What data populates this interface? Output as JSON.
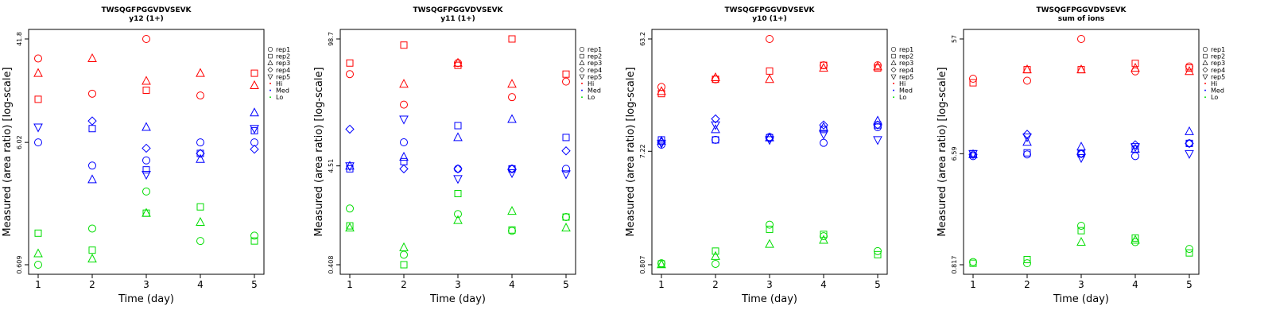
{
  "chart_data": [
    {
      "type": "scatter",
      "title": "TWSQGFPGGVDVSEVK",
      "subtitle": "y12 (1+)",
      "xlabel": "Time (day)",
      "ylabel": "Measured (area ratio) [log-scale]",
      "y_scale": "log",
      "ylim": [
        0.609,
        41.8
      ],
      "yticks": [
        "0.609",
        "6.02",
        "41.8"
      ],
      "categories": [
        1,
        2,
        3,
        4,
        5
      ],
      "legend_position": "right",
      "legend": [
        "rep1",
        "rep2",
        "rep3",
        "rep4",
        "rep5",
        "Hi",
        "Med",
        "Lo"
      ],
      "series": [
        {
          "name": "Hi",
          "color": "#ff0000",
          "reps": {
            "rep1": [
              29,
              15,
              41.8,
              14.5,
              null
            ],
            "rep2": [
              13.5,
              null,
              16,
              null,
              22
            ],
            "rep3": [
              22,
              29,
              19,
              22,
              17.5
            ]
          }
        },
        {
          "name": "Med",
          "color": "#0000ff",
          "reps": {
            "rep1": [
              6.02,
              3.9,
              4.3,
              6.02,
              6.02
            ],
            "rep2": [
              null,
              7.8,
              3.6,
              4.9,
              7.5
            ],
            "rep3": [
              null,
              3.0,
              8.0,
              4.4,
              10.5
            ],
            "rep4": [
              null,
              9.0,
              5.4,
              4.9,
              5.3
            ],
            "rep5": [
              8.0,
              null,
              3.3,
              null,
              7.8
            ]
          }
        },
        {
          "name": "Lo",
          "color": "#00dd00",
          "reps": {
            "rep1": [
              0.609,
              1.2,
              2.4,
              0.95,
              1.05
            ],
            "rep2": [
              1.1,
              0.8,
              1.6,
              1.8,
              0.95
            ],
            "rep3": [
              0.75,
              0.68,
              1.6,
              1.35,
              null
            ]
          }
        }
      ]
    },
    {
      "type": "scatter",
      "title": "TWSQGFPGGVDVSEVK",
      "subtitle": "y11 (1+)",
      "xlabel": "Time (day)",
      "ylabel": "Measured (area ratio) [log-scale]",
      "y_scale": "log",
      "ylim": [
        0.408,
        98.7
      ],
      "yticks": [
        "0.408",
        "4.51",
        "98.7"
      ],
      "categories": [
        1,
        2,
        3,
        4,
        5
      ],
      "legend_position": "right",
      "legend": [
        "rep1",
        "rep2",
        "rep3",
        "rep4",
        "rep5",
        "Hi",
        "Med",
        "Lo"
      ],
      "series": [
        {
          "name": "Hi",
          "color": "#ff0000",
          "reps": {
            "rep1": [
              42,
              20,
              55,
              24,
              35
            ],
            "rep2": [
              55,
              85,
              52,
              98.7,
              42
            ],
            "rep3": [
              null,
              33,
              55,
              33,
              null
            ]
          }
        },
        {
          "name": "Med",
          "color": "#0000ff",
          "reps": {
            "rep1": [
              null,
              8.0,
              4.2,
              4.2,
              4.2
            ],
            "rep2": [
              4.2,
              5.0,
              12,
              4.2,
              9.0
            ],
            "rep3": [
              4.5,
              5.6,
              9.0,
              14,
              null
            ],
            "rep4": [
              11,
              4.2,
              4.2,
              4.2,
              6.5
            ],
            "rep5": [
              4.5,
              14,
              3.3,
              3.8,
              3.7
            ]
          }
        },
        {
          "name": "Lo",
          "color": "#00dd00",
          "reps": {
            "rep1": [
              1.6,
              0.52,
              1.4,
              0.93,
              1.3
            ],
            "rep2": [
              1.05,
              0.408,
              2.3,
              0.95,
              1.3
            ],
            "rep3": [
              1.0,
              0.62,
              1.2,
              1.5,
              1.0
            ]
          }
        }
      ]
    },
    {
      "type": "scatter",
      "title": "TWSQGFPGGVDVSEVK",
      "subtitle": "y10 (1+)",
      "xlabel": "Time (day)",
      "ylabel": "Measured (area ratio) [log-scale]",
      "y_scale": "log",
      "ylim": [
        0.807,
        63.2
      ],
      "yticks": [
        "0.807",
        "7.22",
        "63.2"
      ],
      "categories": [
        1,
        2,
        3,
        4,
        5
      ],
      "legend_position": "right",
      "legend": [
        "rep1",
        "rep2",
        "rep3",
        "rep4",
        "rep5",
        "Hi",
        "Med",
        "Lo"
      ],
      "series": [
        {
          "name": "Hi",
          "color": "#ff0000",
          "reps": {
            "rep1": [
              25,
              29,
              63.2,
              38,
              38
            ],
            "rep2": [
              22,
              29,
              34,
              38,
              36
            ],
            "rep3": [
              23,
              30,
              29,
              36,
              37
            ]
          }
        },
        {
          "name": "Med",
          "color": "#0000ff",
          "reps": {
            "rep1": [
              8.2,
              9.0,
              9.5,
              8.5,
              11.5
            ],
            "rep2": [
              9.0,
              9.0,
              9.4,
              11,
              12
            ],
            "rep3": [
              8.8,
              11,
              9.4,
              11.5,
              13
            ],
            "rep4": [
              8.6,
              13.5,
              9.3,
              12,
              12
            ],
            "rep5": [
              8.4,
              12,
              9.0,
              10,
              9.0
            ]
          }
        },
        {
          "name": "Lo",
          "color": "#00dd00",
          "reps": {
            "rep1": [
              0.83,
              0.82,
              1.75,
              1.4,
              1.05
            ],
            "rep2": [
              0.82,
              1.05,
              1.6,
              1.45,
              0.98
            ],
            "rep3": [
              0.81,
              0.95,
              1.2,
              1.3,
              null
            ]
          }
        }
      ]
    },
    {
      "type": "scatter",
      "title": "TWSQGFPGGVDVSEVK",
      "subtitle": "sum of ions",
      "xlabel": "Time (day)",
      "ylabel": "Measured (area ratio) [log-scale]",
      "y_scale": "log",
      "ylim": [
        0.817,
        57
      ],
      "yticks": [
        "0.817",
        "6.59",
        "57"
      ],
      "categories": [
        1,
        2,
        3,
        4,
        5
      ],
      "legend_position": "right",
      "legend": [
        "rep1",
        "rep2",
        "rep3",
        "rep4",
        "rep5",
        "Hi",
        "Med",
        "Lo"
      ],
      "series": [
        {
          "name": "Hi",
          "color": "#ff0000",
          "reps": {
            "rep1": [
              27,
              26,
              57,
              31,
              34
            ],
            "rep2": [
              25,
              32,
              32,
              36,
              33
            ],
            "rep3": [
              null,
              32,
              32,
              33,
              31
            ]
          }
        },
        {
          "name": "Med",
          "color": "#0000ff",
          "reps": {
            "rep1": [
              6.3,
              6.5,
              6.59,
              6.3,
              8.0
            ],
            "rep2": [
              6.59,
              6.7,
              6.59,
              7.2,
              8.0
            ],
            "rep3": [
              6.5,
              8.2,
              7.5,
              7.2,
              10.0
            ],
            "rep4": [
              6.5,
              9.5,
              6.59,
              7.8,
              8.0
            ],
            "rep5": [
              6.59,
              9.0,
              6.1,
              7.5,
              6.59
            ]
          }
        },
        {
          "name": "Lo",
          "color": "#00dd00",
          "reps": {
            "rep1": [
              0.86,
              0.84,
              1.7,
              1.25,
              1.1
            ],
            "rep2": [
              0.84,
              0.9,
              1.55,
              1.35,
              1.02
            ],
            "rep3": [
              null,
              null,
              1.25,
              1.3,
              null
            ]
          }
        }
      ]
    }
  ]
}
